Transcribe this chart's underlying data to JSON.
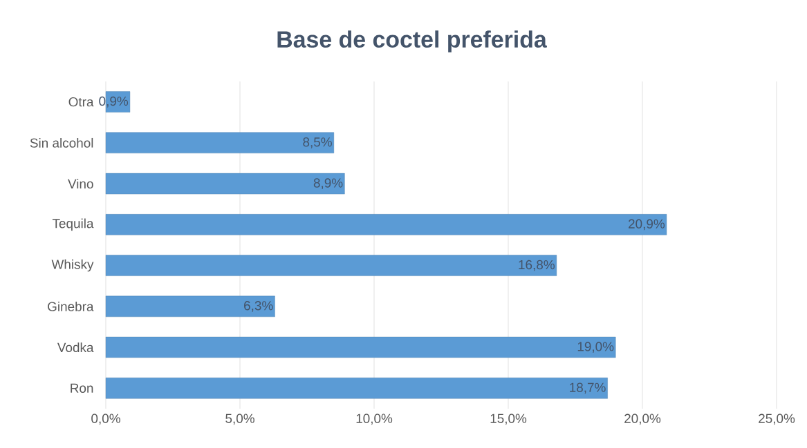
{
  "chart_data": {
    "type": "bar",
    "orientation": "horizontal",
    "title": "Base de coctel preferida",
    "categories": [
      "Otra",
      "Sin alcohol",
      "Vino",
      "Tequila",
      "Whisky",
      "Ginebra",
      "Vodka",
      "Ron"
    ],
    "values": [
      0.9,
      8.5,
      8.9,
      20.9,
      16.8,
      6.3,
      19.0,
      18.7
    ],
    "value_labels": [
      "0,9%",
      "8,5%",
      "8,9%",
      "20,9%",
      "16,8%",
      "6,3%",
      "19,0%",
      "18,7%"
    ],
    "color": "#5b9bd5",
    "xlim": [
      0,
      25
    ],
    "xticks": [
      {
        "value": 0,
        "label": "0,0%"
      },
      {
        "value": 5,
        "label": "5,0%"
      },
      {
        "value": 10,
        "label": "10,0%"
      },
      {
        "value": 15,
        "label": "15,0%"
      },
      {
        "value": 20,
        "label": "20,0%"
      },
      {
        "value": 25,
        "label": "25,0%"
      }
    ],
    "grid": "x"
  }
}
